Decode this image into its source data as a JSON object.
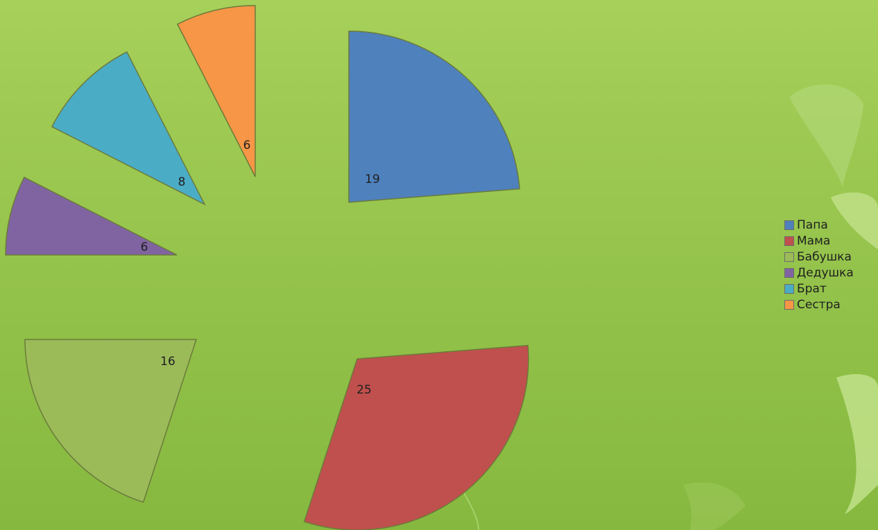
{
  "chart_data": {
    "type": "pie",
    "title": "",
    "exploded": true,
    "start_angle_deg": 0,
    "direction": "clockwise",
    "categories": [
      "Папа",
      "Мама",
      "Бабушка",
      "Дедушка",
      "Брат",
      "Сестра"
    ],
    "values": [
      19,
      25,
      16,
      6,
      8,
      6
    ],
    "colors": [
      "#4f81bd",
      "#c0504d",
      "#9bbb59",
      "#8064a2",
      "#4bacc6",
      "#f79646"
    ],
    "data_labels": [
      "19",
      "25",
      "16",
      "6",
      "8",
      "6"
    ],
    "legend_position": "right",
    "show_data_labels": true
  }
}
